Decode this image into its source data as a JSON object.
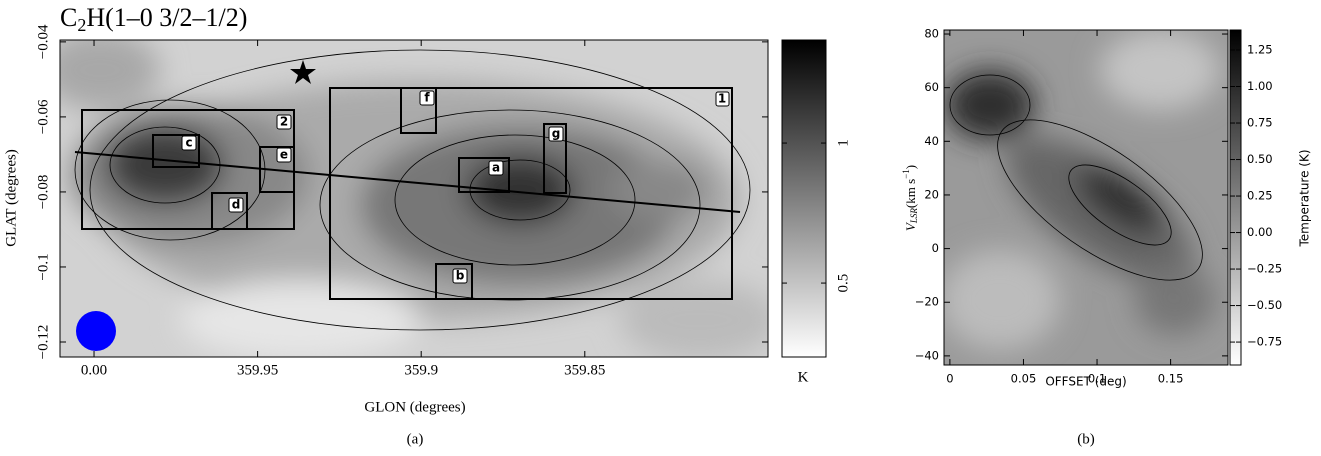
{
  "chart_data": [
    {
      "type": "heatmap",
      "title": [
        "C",
        "2",
        "H(1–0 3/2–1/2)"
      ],
      "x_label": "GLON (degrees)",
      "y_label": "GLAT (degrees)",
      "xlim": [
        360.0104,
        359.794
      ],
      "xticks": [
        {
          "value": 360,
          "label": "0.00"
        },
        359.95,
        359.9,
        359.85
      ],
      "ylim": [
        -0.124,
        -0.0395
      ],
      "yticks": [
        {
          "value": -0.04,
          "label": "−0.04"
        },
        {
          "value": -0.06,
          "label": "−0.06"
        },
        {
          "value": -0.08,
          "label": "−0.08"
        },
        {
          "value": -0.1,
          "label": "−0.1"
        },
        {
          "value": -0.12,
          "label": "−0.12"
        }
      ],
      "colorbar": {
        "label": "K",
        "lim": [
          0.236,
          1.368
        ],
        "ticks": [
          1,
          0.5
        ],
        "cmap": [
          "#ffffff",
          "#000000"
        ]
      },
      "regions": [
        "1",
        "2",
        "a",
        "b",
        "c",
        "d",
        "e",
        "f",
        "g"
      ],
      "caption": "(a)"
    },
    {
      "type": "heatmap",
      "x_label": "OFFSET (deg)",
      "y_label": [
        "V",
        "LSR",
        "(km s",
        "−1",
        ")"
      ],
      "xlim": [
        -0.004,
        0.189
      ],
      "xticks": [
        0,
        0.05,
        0.1,
        0.15
      ],
      "ylim": [
        -43.4,
        81.5
      ],
      "yticks": [
        80,
        60,
        40,
        20,
        0,
        {
          "value": -20,
          "label": "−20"
        },
        {
          "value": -40,
          "label": "−40"
        }
      ],
      "colorbar": {
        "label": "Temperature (K)",
        "lim": [
          -0.907,
          1.387
        ],
        "ticks": [
          1.25,
          {
            "value": 1,
            "label": "1.00"
          },
          0.75,
          {
            "value": 0.5,
            "label": "0.50"
          },
          0.25,
          {
            "value": 0,
            "label": "0.00"
          },
          {
            "value": -0.25,
            "label": "−0.25"
          },
          {
            "value": -0.5,
            "label": "−0.50"
          },
          {
            "value": -0.75,
            "label": "−0.75"
          }
        ],
        "cmap": [
          "#ffffff",
          "#000000"
        ]
      },
      "caption": "(b)"
    }
  ]
}
